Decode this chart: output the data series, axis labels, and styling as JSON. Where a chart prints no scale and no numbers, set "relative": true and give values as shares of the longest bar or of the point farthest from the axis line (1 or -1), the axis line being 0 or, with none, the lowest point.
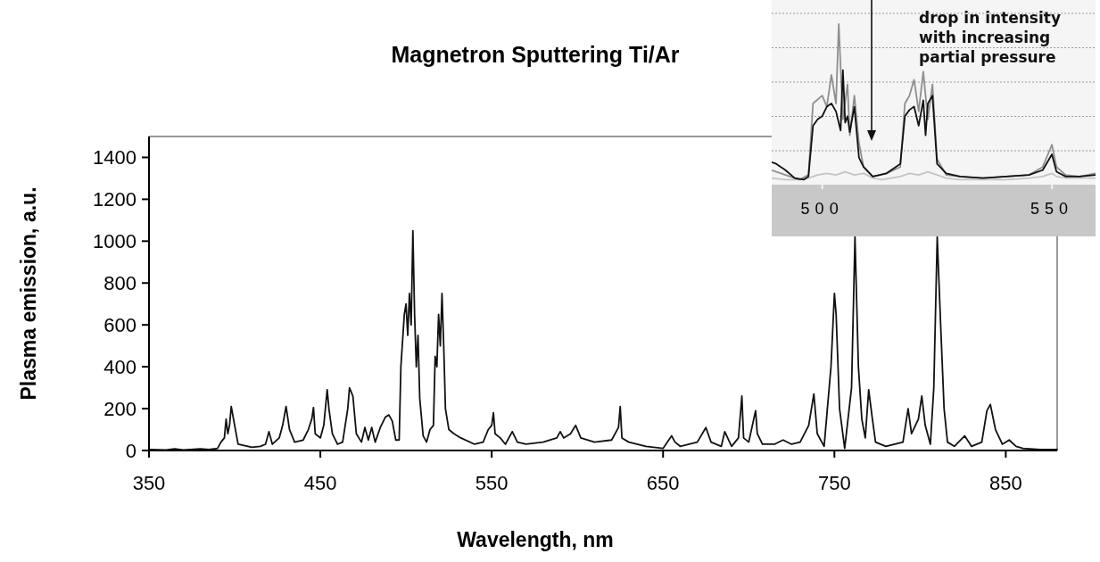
{
  "chart_data": [
    {
      "type": "line",
      "title": "Magnetron Sputtering Ti/Ar",
      "xlabel": "Wavelength, nm",
      "ylabel": "Plasma emission, a.u.",
      "xlim": [
        350,
        880
      ],
      "xticks": [
        350,
        450,
        550,
        650,
        750,
        850
      ],
      "ylim": [
        0,
        1500
      ],
      "yticks": [
        0,
        200,
        400,
        600,
        800,
        1000,
        1200,
        1400
      ],
      "series": [
        {
          "color": "#111111",
          "x": [
            350,
            360,
            365,
            370,
            380,
            385,
            390,
            392,
            394,
            395,
            396,
            397,
            398,
            400,
            402,
            410,
            415,
            418,
            420,
            422,
            426,
            428,
            430,
            432,
            435,
            440,
            443,
            445,
            446,
            447,
            450,
            452,
            454,
            455,
            457,
            460,
            463,
            466,
            467,
            469,
            471,
            474,
            476,
            478,
            480,
            482,
            485,
            488,
            490,
            492,
            494,
            496,
            497,
            499,
            500,
            501,
            502,
            503,
            504,
            505,
            506,
            507,
            508,
            510,
            512,
            514,
            516,
            517,
            518,
            519,
            520,
            521,
            522,
            523,
            525,
            528,
            532,
            540,
            545,
            548,
            550,
            551,
            552,
            555,
            558,
            562,
            565,
            570,
            580,
            588,
            590,
            592,
            596,
            599,
            602,
            610,
            620,
            624,
            625,
            626,
            630,
            640,
            650,
            655,
            657,
            660,
            670,
            675,
            678,
            684,
            686,
            690,
            694,
            696,
            697,
            700,
            704,
            705,
            708,
            715,
            720,
            725,
            730,
            735,
            738,
            740,
            744,
            748,
            750,
            751,
            753,
            756,
            760,
            762,
            764,
            766,
            768,
            770,
            772,
            774,
            780,
            790,
            793,
            795,
            799,
            801,
            803,
            806,
            808,
            810,
            812,
            814,
            816,
            820,
            826,
            830,
            836,
            839,
            841,
            844,
            848,
            852,
            856,
            860,
            870,
            880
          ],
          "values": [
            5,
            3,
            8,
            3,
            8,
            5,
            10,
            40,
            60,
            150,
            80,
            120,
            210,
            120,
            30,
            15,
            20,
            30,
            90,
            30,
            60,
            120,
            210,
            100,
            40,
            50,
            100,
            150,
            205,
            80,
            60,
            120,
            290,
            200,
            80,
            30,
            40,
            200,
            300,
            260,
            80,
            40,
            110,
            50,
            110,
            40,
            110,
            160,
            170,
            140,
            50,
            50,
            400,
            650,
            700,
            550,
            750,
            600,
            1050,
            650,
            400,
            550,
            250,
            70,
            40,
            100,
            120,
            450,
            400,
            650,
            500,
            750,
            500,
            200,
            100,
            80,
            60,
            30,
            40,
            100,
            120,
            180,
            80,
            60,
            30,
            90,
            40,
            30,
            40,
            60,
            90,
            60,
            80,
            120,
            60,
            40,
            50,
            110,
            210,
            60,
            40,
            20,
            10,
            70,
            40,
            20,
            40,
            110,
            40,
            20,
            90,
            20,
            60,
            260,
            60,
            40,
            190,
            80,
            30,
            30,
            50,
            30,
            40,
            120,
            270,
            80,
            20,
            400,
            750,
            650,
            200,
            10,
            300,
            1020,
            400,
            150,
            60,
            290,
            160,
            40,
            20,
            40,
            200,
            80,
            150,
            260,
            120,
            30,
            300,
            1020,
            600,
            200,
            40,
            20,
            70,
            20,
            40,
            190,
            220,
            100,
            30,
            50,
            20,
            10,
            5,
            5
          ]
        }
      ]
    },
    {
      "type": "line",
      "relative": true,
      "xlim": [
        489,
        559.5
      ],
      "xticks": [
        500,
        550
      ],
      "grid": "y",
      "tick_labels": "x",
      "annotations": [
        "drop in intensity\nwith increasing\npartial pressure"
      ],
      "series": [
        {
          "color": "#c4c4c4",
          "x": [
            489,
            492,
            495,
            497,
            499,
            501,
            503,
            505,
            507,
            509,
            511,
            513,
            515,
            517,
            519,
            521,
            523,
            525,
            527,
            530,
            535,
            540,
            545,
            548,
            550,
            551,
            553,
            556,
            559.5
          ],
          "values": [
            0.03,
            0.02,
            0.02,
            0.03,
            0.05,
            0.06,
            0.05,
            0.07,
            0.05,
            0.06,
            0.03,
            0.02,
            0.03,
            0.04,
            0.06,
            0.05,
            0.07,
            0.05,
            0.03,
            0.02,
            0.02,
            0.02,
            0.03,
            0.04,
            0.06,
            0.04,
            0.03,
            0.03,
            0.03
          ]
        },
        {
          "color": "#8f8f8f",
          "x": [
            489,
            492,
            495,
            497,
            498,
            500,
            501,
            502,
            503,
            503.6,
            504.5,
            505.5,
            506,
            507,
            508,
            509,
            511,
            514,
            517,
            518,
            519,
            520,
            521,
            522,
            523,
            524,
            525,
            527,
            530,
            535,
            540,
            545,
            548,
            550,
            551,
            553,
            556,
            559.5
          ],
          "values": [
            0.08,
            0.05,
            0.02,
            0.05,
            0.5,
            0.55,
            0.48,
            0.68,
            0.5,
            1.0,
            0.4,
            0.62,
            0.3,
            0.55,
            0.25,
            0.1,
            0.04,
            0.06,
            0.1,
            0.5,
            0.55,
            0.65,
            0.45,
            0.7,
            0.4,
            0.62,
            0.15,
            0.05,
            0.04,
            0.03,
            0.04,
            0.05,
            0.1,
            0.24,
            0.1,
            0.05,
            0.04,
            0.06
          ]
        },
        {
          "color": "#111111",
          "x": [
            489,
            490,
            492,
            494,
            496,
            497,
            498,
            499,
            500,
            501,
            502,
            503,
            504,
            504.5,
            505,
            505.5,
            506,
            507,
            508,
            509,
            511,
            514,
            517,
            518,
            519,
            520,
            521,
            522,
            522.5,
            523,
            524,
            525,
            527,
            530,
            535,
            540,
            545,
            548,
            550,
            551,
            553,
            556,
            559.5
          ],
          "values": [
            0.13,
            0.12,
            0.08,
            0.03,
            0.02,
            0.04,
            0.36,
            0.4,
            0.42,
            0.48,
            0.5,
            0.45,
            0.33,
            0.71,
            0.38,
            0.42,
            0.32,
            0.48,
            0.16,
            0.1,
            0.04,
            0.06,
            0.12,
            0.42,
            0.46,
            0.48,
            0.36,
            0.52,
            0.3,
            0.5,
            0.55,
            0.12,
            0.06,
            0.04,
            0.03,
            0.04,
            0.05,
            0.08,
            0.18,
            0.07,
            0.04,
            0.04,
            0.05
          ]
        }
      ]
    }
  ]
}
